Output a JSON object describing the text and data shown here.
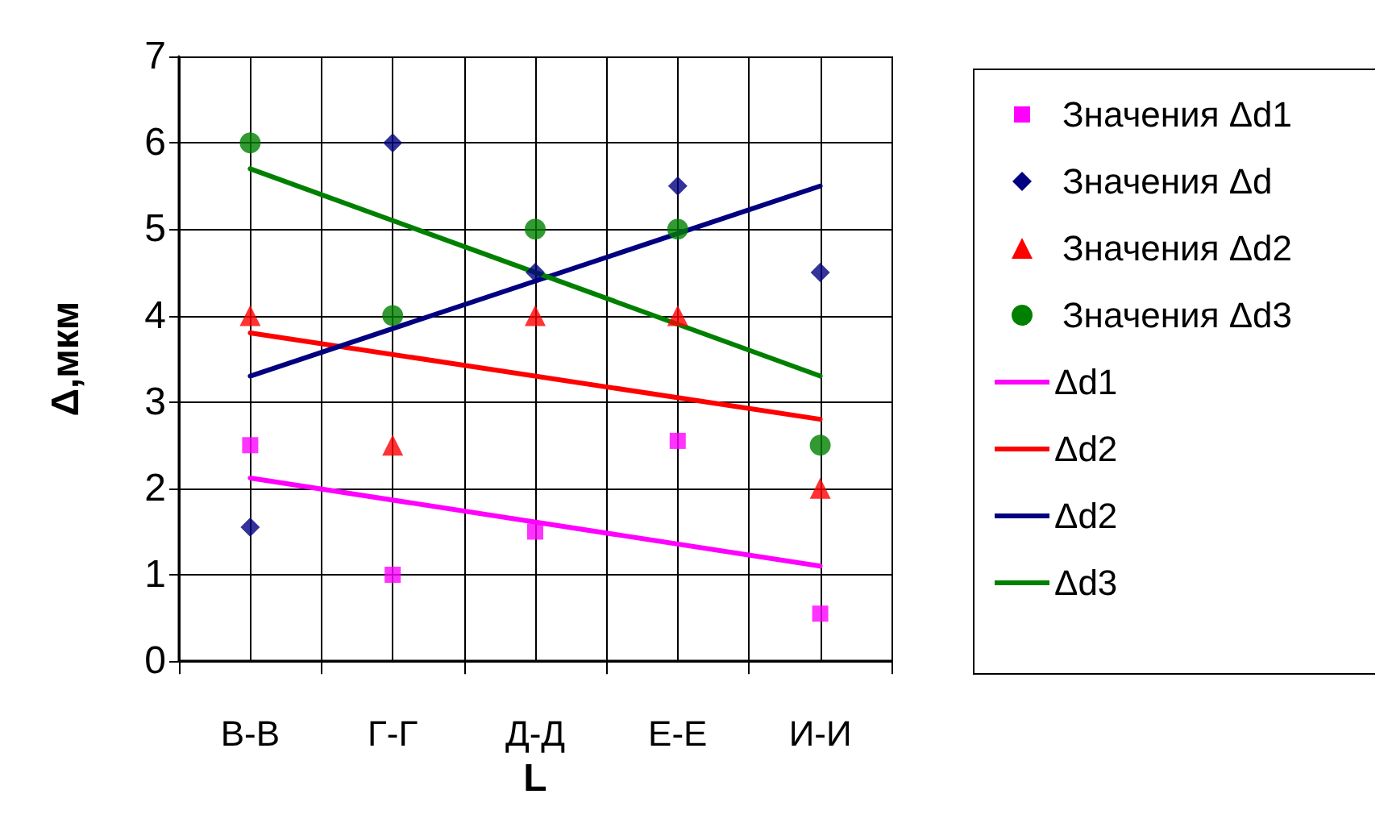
{
  "chart_data": {
    "type": "scatter",
    "xlabel": "L",
    "ylabel": "Δ,мкм",
    "categories": [
      "В-В",
      "Г-Г",
      "Д-Д",
      "Е-Е",
      "И-И"
    ],
    "ylim": [
      0,
      7
    ],
    "yticks": [
      0,
      1,
      2,
      3,
      4,
      5,
      6,
      7
    ],
    "grid": true,
    "legend": "right",
    "series": [
      {
        "name": "Значения Δd1",
        "marker": "square",
        "color": "#ff00ff",
        "values": [
          2.5,
          1.0,
          1.5,
          2.55,
          0.55
        ]
      },
      {
        "name": "Значения Δd",
        "marker": "diamond",
        "color": "#000080",
        "values": [
          1.55,
          6.0,
          4.5,
          5.5,
          4.5
        ]
      },
      {
        "name": "Значения Δd2",
        "marker": "triangle",
        "color": "#ff0000",
        "values": [
          4.0,
          2.5,
          4.0,
          4.0,
          2.0
        ]
      },
      {
        "name": "Значения Δd3",
        "marker": "circle",
        "color": "#008000",
        "values": [
          6.0,
          4.0,
          5.0,
          5.0,
          2.5
        ]
      },
      {
        "name": "Δd1",
        "type": "line",
        "marker": "none",
        "color": "#ff00ff",
        "x": [
          "В-В",
          "И-И"
        ],
        "values": [
          2.12,
          1.1
        ]
      },
      {
        "name": "Δd2",
        "type": "line",
        "marker": "none",
        "color": "#ff0000",
        "x": [
          "В-В",
          "И-И"
        ],
        "values": [
          3.8,
          2.8
        ]
      },
      {
        "name": "Δd2",
        "type": "line",
        "marker": "none",
        "color": "#000080",
        "x": [
          "В-В",
          "И-И"
        ],
        "values": [
          3.3,
          5.5
        ]
      },
      {
        "name": "Δd3",
        "type": "line",
        "marker": "none",
        "color": "#008000",
        "x": [
          "В-В",
          "И-И"
        ],
        "values": [
          5.7,
          3.3
        ]
      }
    ]
  }
}
